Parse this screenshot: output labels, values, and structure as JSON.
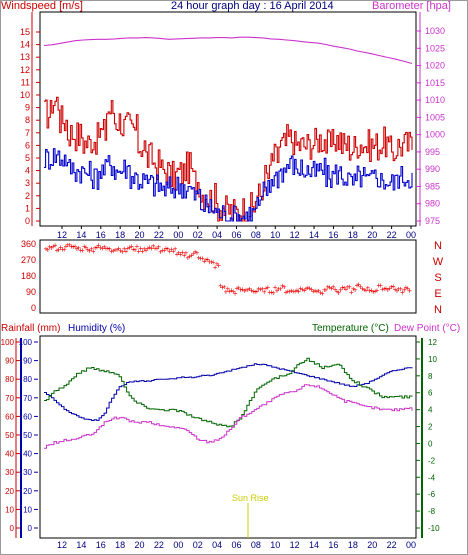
{
  "header": {
    "windspeed_label": "Windspeed [m/s]",
    "title": "24 hour graph day : 16 April 2014",
    "barometer_label": "Barometer [hpa]"
  },
  "footer_note": "Sun Rise",
  "colors": {
    "windspeed": "#cc0000",
    "gust": "#0000cc",
    "barometer": "#cc33cc",
    "direction": "#ee0000",
    "rain_axis": "#cc0000",
    "humidity": "#0000aa",
    "temperature": "#006600",
    "dewpoint": "#cc33cc",
    "sunrise": "#cccc00"
  },
  "chart_data": [
    {
      "type": "line",
      "title": "24 hour graph day : 16 April 2014",
      "x_ticks": [
        "12",
        "14",
        "16",
        "18",
        "20",
        "22",
        "00",
        "02",
        "04",
        "06",
        "08",
        "10",
        "12",
        "14",
        "16",
        "18",
        "20",
        "22",
        "00"
      ],
      "ylabel_left": "Windspeed [m/s]",
      "ylim_left": [
        0,
        15
      ],
      "yticks_left": [
        0,
        1,
        2,
        3,
        4,
        5,
        6,
        7,
        8,
        9,
        10,
        11,
        12,
        13,
        14,
        15
      ],
      "ylabel_right": "Barometer [hpa]",
      "ylim_right": [
        975,
        1030
      ],
      "yticks_right": [
        975,
        980,
        985,
        990,
        995,
        1000,
        1005,
        1010,
        1015,
        1020,
        1025,
        1030
      ],
      "series": [
        {
          "axis": "left",
          "color": "#cc0000",
          "values": [
            8.5,
            9.5,
            8.0,
            7.0,
            6.8,
            6.2,
            6.5,
            7.0,
            8.8,
            8.0,
            7.5,
            7.2,
            6.0,
            5.0,
            4.5,
            4.0,
            3.5,
            3.8,
            4.2,
            3.2,
            2.2,
            1.8,
            1.2,
            0.8,
            0.7,
            0.9,
            1.0,
            2.0,
            3.5,
            5.0,
            6.0,
            6.5,
            6.0,
            6.0,
            6.2,
            6.5,
            6.0,
            6.5,
            6.0,
            5.8,
            6.2,
            6.0,
            6.0,
            6.2,
            5.5,
            6.0,
            6.0,
            6.0
          ]
        },
        {
          "axis": "left",
          "color": "#0000cc",
          "values": [
            5.0,
            5.2,
            5.0,
            4.2,
            4.0,
            3.8,
            3.5,
            4.0,
            4.5,
            4.0,
            4.2,
            3.5,
            3.2,
            3.0,
            2.8,
            2.5,
            2.6,
            2.8,
            2.5,
            2.0,
            1.2,
            1.0,
            0.6,
            0.3,
            0.3,
            0.4,
            0.6,
            1.2,
            2.5,
            3.5,
            4.0,
            4.5,
            4.2,
            4.0,
            3.8,
            4.0,
            3.5,
            3.8,
            3.5,
            3.0,
            3.5,
            3.2,
            3.5,
            3.2,
            3.0,
            3.5,
            3.5,
            3.5
          ]
        },
        {
          "axis": "right",
          "color": "#cc33cc",
          "values": [
            1025.8,
            1026.0,
            1026.4,
            1026.8,
            1027.2,
            1027.4,
            1027.5,
            1027.6,
            1027.6,
            1027.7,
            1027.9,
            1028.0,
            1028.0,
            1028.1,
            1028.0,
            1027.8,
            1027.6,
            1027.7,
            1027.8,
            1027.9,
            1028.0,
            1028.0,
            1028.1,
            1028.1,
            1028.0,
            1028.2,
            1028.2,
            1028.1,
            1028.0,
            1027.7,
            1027.6,
            1027.4,
            1027.2,
            1026.9,
            1026.7,
            1026.5,
            1026.1,
            1025.6,
            1025.2,
            1024.8,
            1024.2,
            1023.8,
            1023.3,
            1022.8,
            1022.3,
            1021.8,
            1021.2,
            1020.6
          ]
        }
      ]
    },
    {
      "type": "scatter",
      "ylabel": "Wind direction",
      "yticks": [
        0,
        90,
        180,
        270,
        360
      ],
      "compass": [
        "N",
        "W",
        "S",
        "E",
        "N"
      ],
      "points_color": "#ee0000",
      "values": [
        340,
        345,
        335,
        340,
        350,
        345,
        335,
        340,
        330,
        345,
        338,
        342,
        330,
        335,
        325,
        340,
        338,
        330,
        335,
        340,
        345,
        320,
        330,
        325,
        300,
        305,
        295,
        310,
        290,
        270,
        255,
        240,
        120,
        100,
        95,
        105,
        100,
        110,
        95,
        100,
        105,
        98,
        110,
        115,
        100,
        95,
        105,
        108,
        112,
        100,
        95,
        110,
        120,
        100,
        105,
        115,
        100,
        125,
        110,
        105,
        100,
        118,
        110,
        120,
        105,
        100,
        110
      ]
    },
    {
      "type": "line",
      "legend": [
        "Rainfall (mm)",
        "Humidity (%)",
        "Temperature (°C)",
        "Dew Point (°C)"
      ],
      "ylim_rain": [
        0,
        100
      ],
      "yticks_rain": [
        0,
        10,
        20,
        30,
        40,
        50,
        60,
        70,
        80,
        90,
        100
      ],
      "ylim_humidity": [
        0,
        100
      ],
      "yticks_humidity": [
        0,
        10,
        20,
        30,
        40,
        50,
        60,
        70,
        80,
        90,
        100
      ],
      "ylim_temp": [
        -10,
        12
      ],
      "yticks_temp": [
        -10,
        -8,
        -6,
        -4,
        -2,
        0,
        2,
        4,
        6,
        8,
        10,
        12
      ],
      "series": [
        {
          "name": "Humidity (%)",
          "axis": "humidity",
          "color": "#0000aa",
          "values": [
            73,
            70,
            66,
            63,
            61,
            59,
            58,
            58,
            62,
            70,
            76,
            78,
            79,
            79,
            79,
            80,
            80,
            80,
            81,
            81,
            81,
            82,
            82,
            83,
            84,
            85,
            86,
            87,
            88,
            88,
            87,
            86,
            85,
            84,
            83,
            82,
            81,
            80,
            79,
            78,
            77,
            76,
            77,
            78,
            80,
            82,
            84,
            85,
            86,
            86
          ]
        },
        {
          "name": "Temperature (°C)",
          "axis": "temp",
          "color": "#006600",
          "values": [
            5.0,
            6.0,
            6.5,
            7.0,
            8.0,
            8.5,
            9.0,
            8.8,
            8.5,
            8.5,
            8.0,
            6.0,
            5.0,
            4.5,
            4.2,
            4.0,
            4.0,
            4.0,
            3.8,
            3.5,
            3.0,
            2.8,
            2.5,
            2.2,
            2.0,
            2.2,
            3.0,
            4.5,
            6.0,
            7.0,
            7.5,
            7.8,
            8.0,
            8.5,
            9.5,
            10.0,
            9.5,
            9.0,
            9.0,
            9.5,
            8.5,
            7.5,
            7.0,
            6.5,
            6.0,
            5.5,
            5.5,
            5.5,
            5.5,
            5.5
          ]
        },
        {
          "name": "Dew Point (°C)",
          "axis": "temp",
          "color": "#cc33cc",
          "values": [
            -0.5,
            0.0,
            0.2,
            0.4,
            0.5,
            0.8,
            1.0,
            1.5,
            2.5,
            3.0,
            3.0,
            2.8,
            2.5,
            2.5,
            2.5,
            2.2,
            2.0,
            2.0,
            1.8,
            1.5,
            0.8,
            0.3,
            0.2,
            0.5,
            1.0,
            2.0,
            3.0,
            3.5,
            4.0,
            4.5,
            5.0,
            5.5,
            6.0,
            6.0,
            6.5,
            7.0,
            6.8,
            6.5,
            6.0,
            5.5,
            5.0,
            4.8,
            4.5,
            4.3,
            4.2,
            4.0,
            4.0,
            4.0,
            4.2,
            4.0
          ]
        }
      ],
      "annotation": "Sun Rise"
    }
  ]
}
